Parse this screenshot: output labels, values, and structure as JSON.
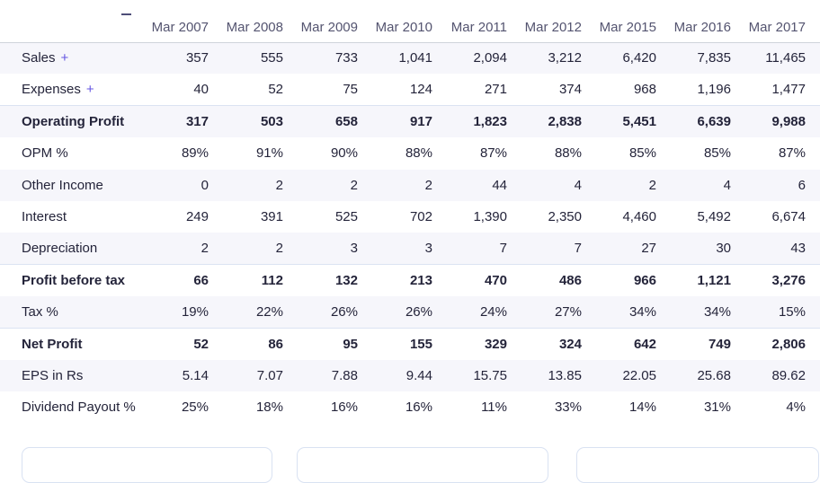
{
  "colors": {
    "stripe_background": "#f6f6fb",
    "header_text": "#545470",
    "body_text": "#24243a",
    "accent_plus": "#6455e2",
    "strong_row_border": "#dbe3f2",
    "header_border": "#cfd3db",
    "card_border": "#d9e2f2"
  },
  "table": {
    "columns": [
      "",
      "Mar 2007",
      "Mar 2008",
      "Mar 2009",
      "Mar 2010",
      "Mar 2011",
      "Mar 2012",
      "Mar 2015",
      "Mar 2016",
      "Mar 2017"
    ],
    "expand_symbol": "+",
    "rows": [
      {
        "label": "Sales",
        "expandable": true,
        "bold": false,
        "values": [
          "357",
          "555",
          "733",
          "1,041",
          "2,094",
          "3,212",
          "6,420",
          "7,835",
          "11,465"
        ]
      },
      {
        "label": "Expenses",
        "expandable": true,
        "bold": false,
        "values": [
          "40",
          "52",
          "75",
          "124",
          "271",
          "374",
          "968",
          "1,196",
          "1,477"
        ]
      },
      {
        "label": "Operating Profit",
        "expandable": false,
        "bold": true,
        "values": [
          "317",
          "503",
          "658",
          "917",
          "1,823",
          "2,838",
          "5,451",
          "6,639",
          "9,988"
        ]
      },
      {
        "label": "OPM %",
        "expandable": false,
        "bold": false,
        "values": [
          "89%",
          "91%",
          "90%",
          "88%",
          "87%",
          "88%",
          "85%",
          "85%",
          "87%"
        ]
      },
      {
        "label": "Other Income",
        "expandable": false,
        "bold": false,
        "values": [
          "0",
          "2",
          "2",
          "2",
          "44",
          "4",
          "2",
          "4",
          "6"
        ]
      },
      {
        "label": "Interest",
        "expandable": false,
        "bold": false,
        "values": [
          "249",
          "391",
          "525",
          "702",
          "1,390",
          "2,350",
          "4,460",
          "5,492",
          "6,674"
        ]
      },
      {
        "label": "Depreciation",
        "expandable": false,
        "bold": false,
        "values": [
          "2",
          "2",
          "3",
          "3",
          "7",
          "7",
          "27",
          "30",
          "43"
        ]
      },
      {
        "label": "Profit before tax",
        "expandable": false,
        "bold": true,
        "values": [
          "66",
          "112",
          "132",
          "213",
          "470",
          "486",
          "966",
          "1,121",
          "3,276"
        ]
      },
      {
        "label": "Tax %",
        "expandable": false,
        "bold": false,
        "values": [
          "19%",
          "22%",
          "26%",
          "26%",
          "24%",
          "27%",
          "34%",
          "34%",
          "15%"
        ]
      },
      {
        "label": "Net Profit",
        "expandable": false,
        "bold": true,
        "values": [
          "52",
          "86",
          "95",
          "155",
          "329",
          "324",
          "642",
          "749",
          "2,806"
        ]
      },
      {
        "label": "EPS in Rs",
        "expandable": false,
        "bold": false,
        "values": [
          "5.14",
          "7.07",
          "7.88",
          "9.44",
          "15.75",
          "13.85",
          "22.05",
          "25.68",
          "89.62"
        ]
      },
      {
        "label": "Dividend Payout %",
        "expandable": false,
        "bold": false,
        "values": [
          "25%",
          "18%",
          "16%",
          "16%",
          "11%",
          "33%",
          "14%",
          "31%",
          "4%"
        ]
      }
    ]
  },
  "bottom_cards": {
    "count": 3
  }
}
